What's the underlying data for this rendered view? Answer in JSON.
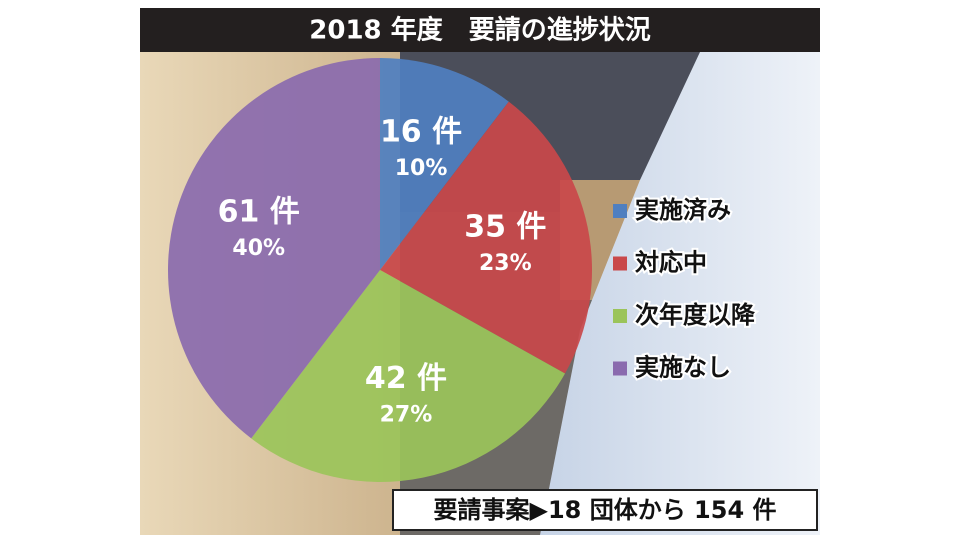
{
  "chart_data": {
    "type": "pie",
    "title": "2018 年度　要請の進捗状況",
    "categories": [
      "実施済み",
      "対応中",
      "次年度以降",
      "実施なし"
    ],
    "values": [
      16,
      35,
      42,
      61
    ],
    "value_labels": [
      "16 件",
      "35 件",
      "42 件",
      "61 件"
    ],
    "percent_labels": [
      "10%",
      "23%",
      "27%",
      "40%"
    ],
    "colors": [
      "#4f7fc0",
      "#c9484a",
      "#9bc45a",
      "#8a6aae"
    ],
    "legend": "right",
    "note": "要請事案▶18 団体から 154 件"
  }
}
